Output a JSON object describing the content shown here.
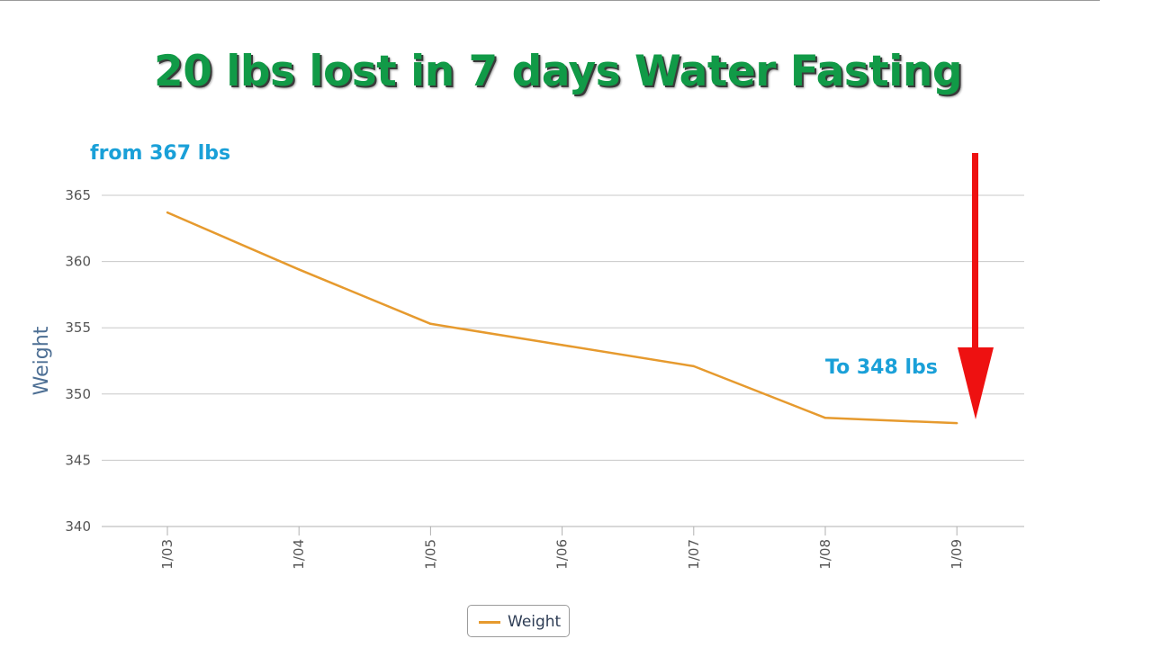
{
  "headline": "20 lbs lost in 7 days Water Fasting",
  "annotations": {
    "from": "from 367 lbs",
    "to": "To 348 lbs"
  },
  "colors": {
    "headline": "#119a47",
    "annotation": "#1aa0d8",
    "series": "#e69a2e",
    "arrow": "#ee1111",
    "grid": "#c8c8c8"
  },
  "chart_data": {
    "type": "line",
    "categories": [
      "1/03",
      "1/04",
      "1/05",
      "1/06",
      "1/07",
      "1/08",
      "1/09"
    ],
    "series": [
      {
        "name": "Weight",
        "values": [
          363.7,
          359.4,
          355.3,
          353.7,
          352.1,
          348.2,
          347.8
        ]
      }
    ],
    "title": "20 lbs lost in 7 days Water Fasting",
    "xlabel": "",
    "ylabel": "Weight",
    "ylim": [
      340,
      365
    ],
    "yticks": [
      340,
      345,
      350,
      355,
      360,
      365
    ],
    "grid": true,
    "legend": "bottom-center",
    "arrow": "downward arrow pointing to final value"
  }
}
